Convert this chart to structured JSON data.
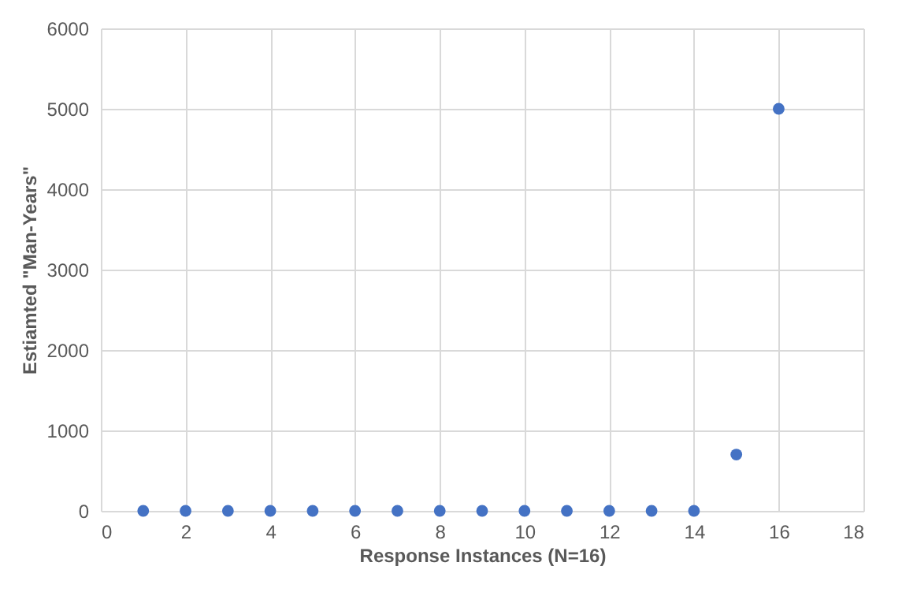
{
  "chart_data": {
    "type": "scatter",
    "xlabel": "Response Instances (N=16)",
    "ylabel": "Estiamted \"Man-Years\"",
    "x": [
      1,
      2,
      3,
      4,
      5,
      6,
      7,
      8,
      9,
      10,
      11,
      12,
      13,
      14,
      15,
      16
    ],
    "series": [
      {
        "color": "#4472c4",
        "values": [
          0,
          0,
          0,
          0,
          0,
          0,
          0,
          0,
          0,
          0,
          0,
          0,
          0,
          0,
          700,
          5000
        ]
      }
    ],
    "xlim": [
      0,
      18
    ],
    "xticks": [
      0,
      2,
      4,
      6,
      8,
      10,
      12,
      14,
      16,
      18
    ],
    "ylim": [
      0,
      6000
    ],
    "yticks": [
      0,
      1000,
      2000,
      3000,
      4000,
      5000,
      6000
    ],
    "grid": true,
    "marker": "circle",
    "legend": false
  }
}
